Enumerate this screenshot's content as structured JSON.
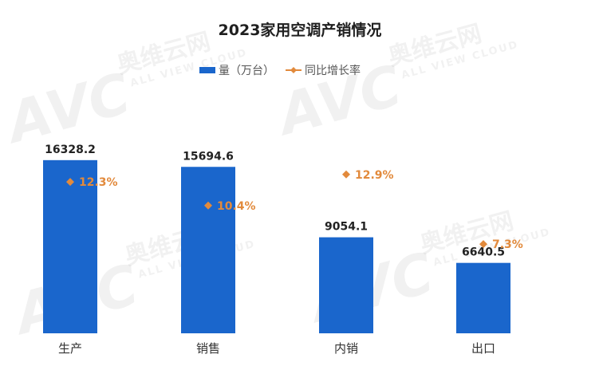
{
  "chart_data": {
    "type": "bar",
    "title": "2023家用空调产销情况",
    "categories": [
      "生产",
      "销售",
      "内销",
      "出口"
    ],
    "series": [
      {
        "name": "量（万台）",
        "kind": "bar",
        "color": "#1a66cc",
        "values": [
          16328.2,
          15694.6,
          9054.1,
          6640.5
        ]
      },
      {
        "name": "同比增长率",
        "kind": "marker",
        "color": "#e28a3c",
        "values": [
          12.3,
          10.4,
          12.9,
          7.3
        ],
        "value_labels": [
          "12.3%",
          "10.4%",
          "12.9%",
          "7.3%"
        ]
      }
    ],
    "bar_value_labels": [
      "16328.2",
      "15694.6",
      "9054.1",
      "6640.5"
    ],
    "ylim": [
      0,
      20000
    ],
    "y2lim": [
      0,
      25
    ],
    "grid": false,
    "legend_position": "top-center"
  },
  "watermark": {
    "logo": "AVC",
    "cn": "奥维云网",
    "en": "ALL VIEW CLOUD"
  }
}
